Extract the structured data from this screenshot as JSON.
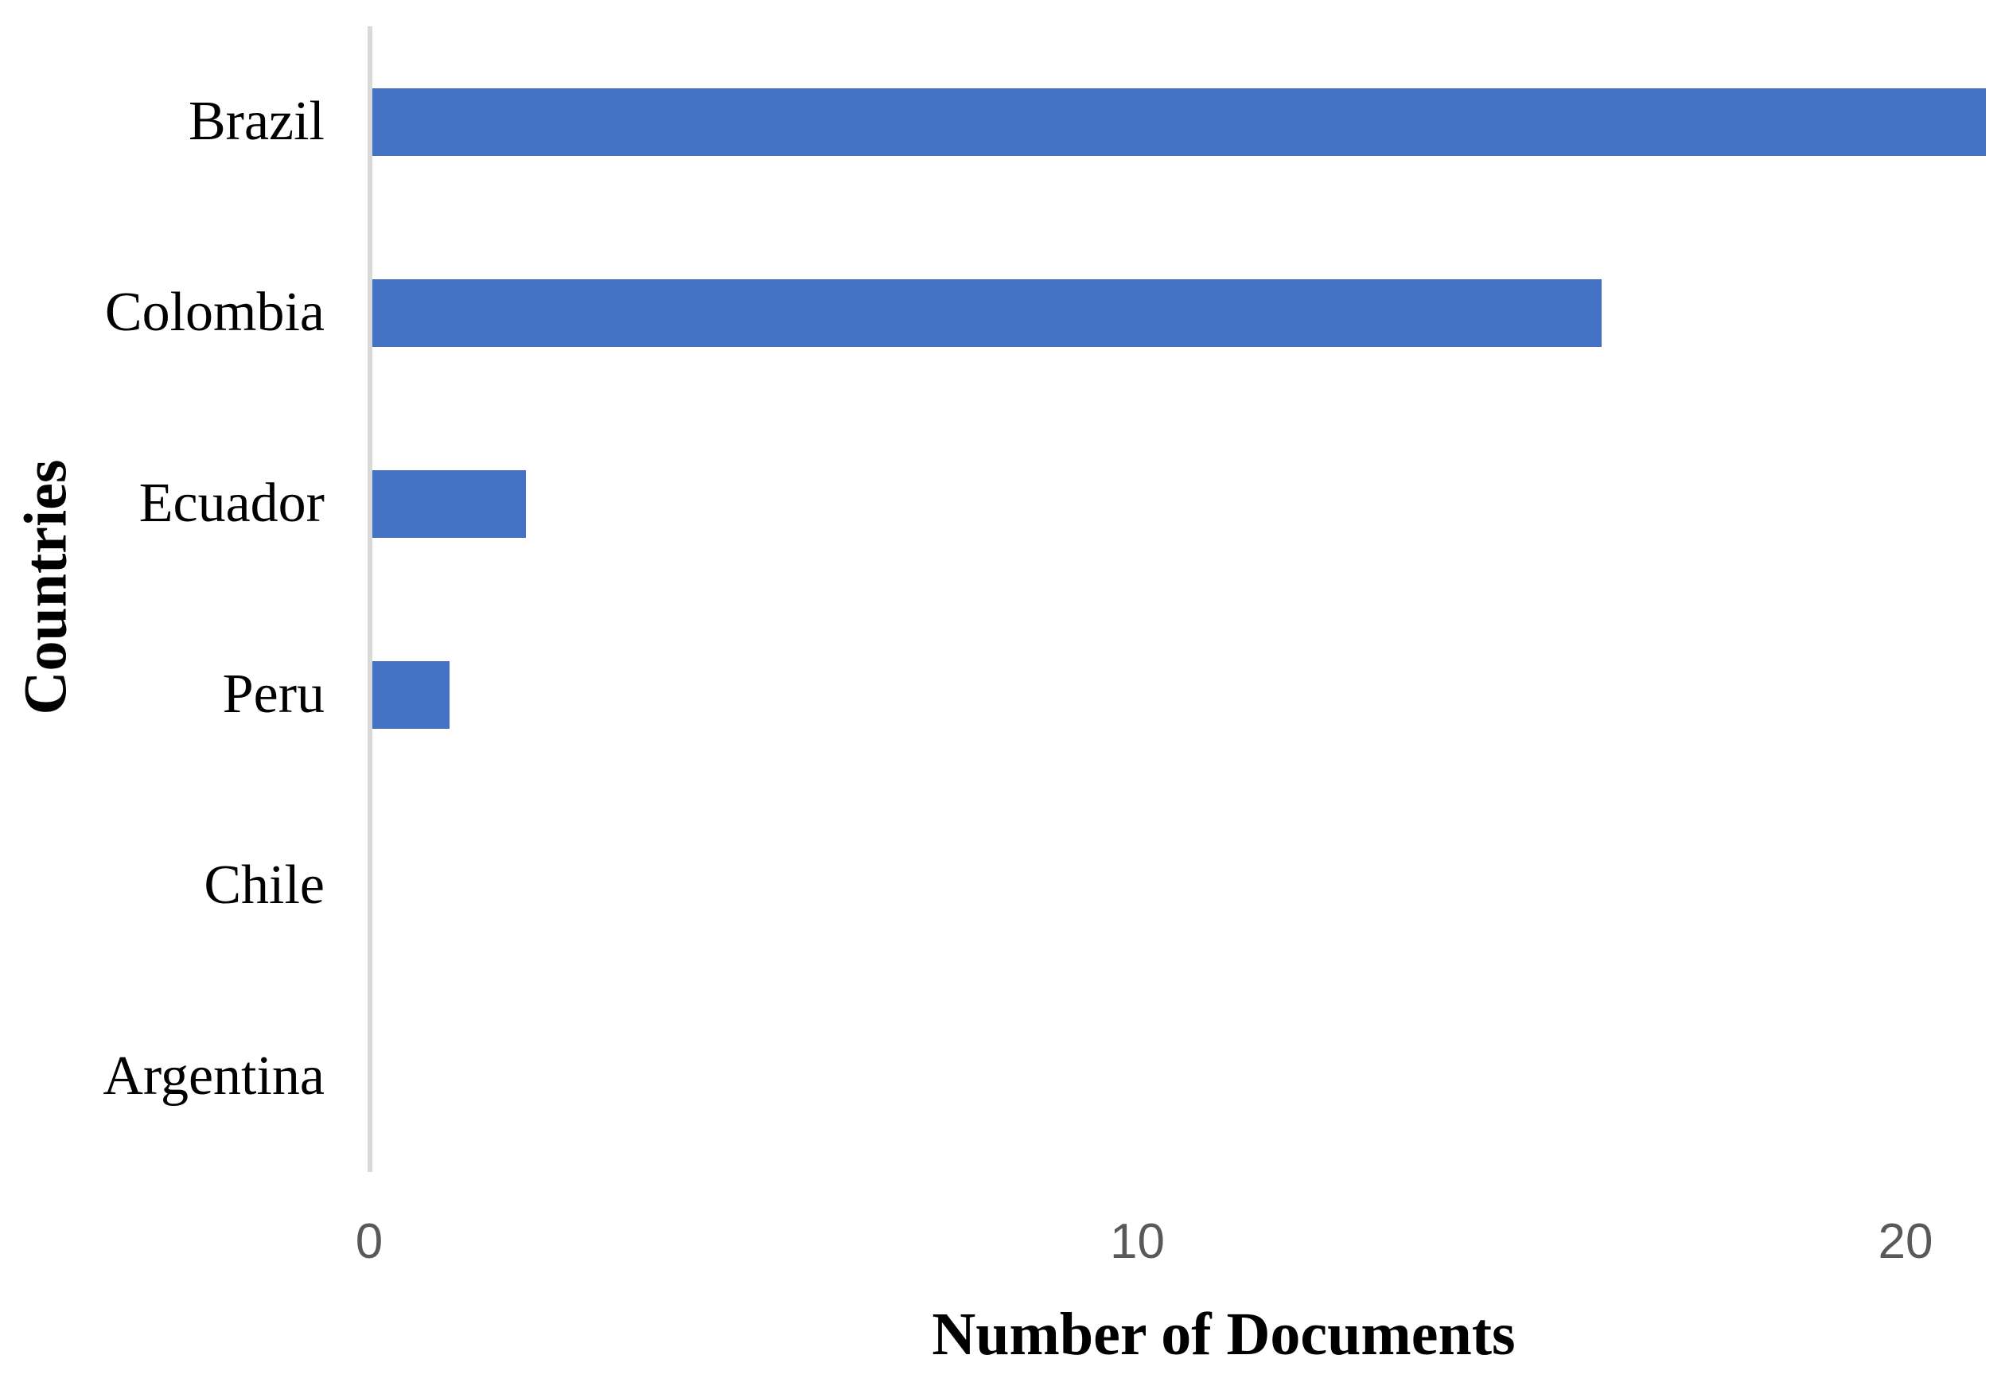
{
  "chart_data": {
    "type": "bar",
    "orientation": "horizontal",
    "title": "",
    "xlabel": "Number of Documents",
    "ylabel": "Countries",
    "categories": [
      "Brazil",
      "Colombia",
      "Ecuador",
      "Peru",
      "Chile",
      "Argentina"
    ],
    "values": [
      21,
      16,
      2,
      1,
      0,
      0
    ],
    "xticks": [
      0,
      10,
      20
    ],
    "xlim": [
      0,
      21.3
    ],
    "grid": false,
    "legend": false,
    "bar_color": "#4472C4",
    "axis_line_color": "#D9D9D9",
    "tick_label_color": "#595959",
    "label_color": "#000000"
  }
}
